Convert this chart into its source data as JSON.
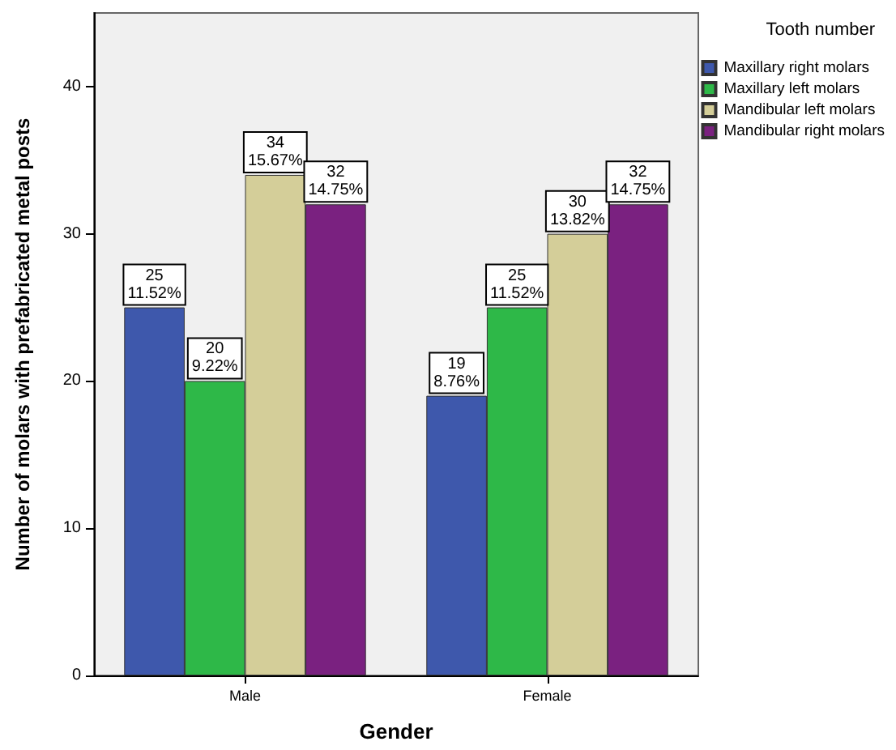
{
  "chart_data": {
    "type": "bar",
    "xlabel": "Gender",
    "ylabel": "Number of molars with prefabricated metal posts",
    "legend_title": "Tooth number",
    "categories": [
      "Male",
      "Female"
    ],
    "series": [
      {
        "name": "Maxillary right molars",
        "color": "#3e58ac",
        "values": [
          25,
          19
        ],
        "value_labels": [
          "25\n11.52%",
          "19\n8.76%"
        ]
      },
      {
        "name": "Maxillary left molars",
        "color": "#2eb848",
        "values": [
          20,
          25
        ],
        "value_labels": [
          "20\n9.22%",
          "25\n11.52%"
        ]
      },
      {
        "name": "Mandibular left molars",
        "color": "#d4ce99",
        "values": [
          34,
          30
        ],
        "value_labels": [
          "34\n15.67%",
          "30\n13.82%"
        ]
      },
      {
        "name": "Mandibular right molars",
        "color": "#7a2180",
        "values": [
          32,
          32
        ],
        "value_labels": [
          "32\n14.75%",
          "32\n14.75%"
        ]
      }
    ],
    "ylim": [
      0,
      45
    ],
    "yticks": [
      0,
      10,
      20,
      30,
      40
    ],
    "grid": false,
    "legend": "right"
  }
}
